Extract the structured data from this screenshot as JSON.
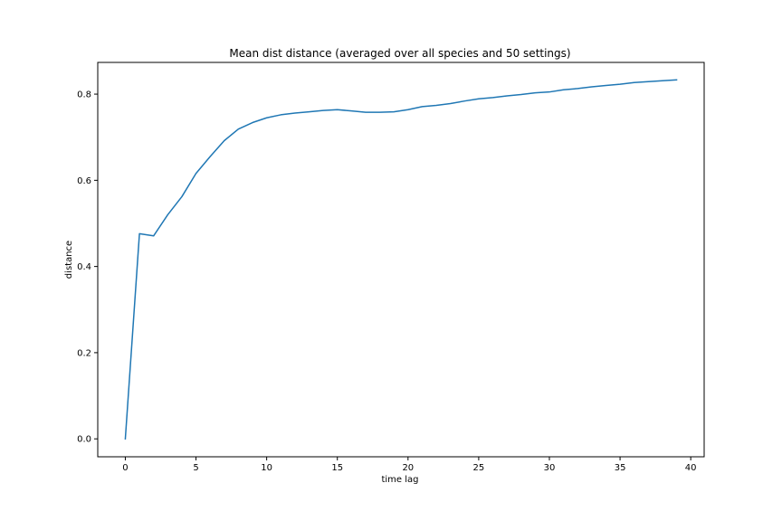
{
  "chart_data": {
    "type": "line",
    "title": "Mean dist distance (averaged over all species and 50 settings)",
    "xlabel": "time lag",
    "ylabel": "distance",
    "xlim": [
      -1.95,
      40.95
    ],
    "ylim": [
      -0.0416,
      0.8736
    ],
    "xticks": [
      0,
      5,
      10,
      15,
      20,
      25,
      30,
      35,
      40
    ],
    "xtick_labels": [
      "0",
      "5",
      "10",
      "15",
      "20",
      "25",
      "30",
      "35",
      "40"
    ],
    "yticks": [
      0.0,
      0.2,
      0.4,
      0.6,
      0.8
    ],
    "ytick_labels": [
      "0.0",
      "0.2",
      "0.4",
      "0.6",
      "0.8"
    ],
    "grid": false,
    "legend": "none",
    "series": [
      {
        "color": "#1f77b4",
        "x": [
          0,
          1,
          2,
          3,
          4,
          5,
          6,
          7,
          8,
          9,
          10,
          11,
          12,
          13,
          14,
          15,
          16,
          17,
          18,
          19,
          20,
          21,
          22,
          23,
          24,
          25,
          26,
          27,
          28,
          29,
          30,
          31,
          32,
          33,
          34,
          35,
          36,
          37,
          38,
          39
        ],
        "y": [
          0.0,
          0.476,
          0.471,
          0.52,
          0.562,
          0.616,
          0.655,
          0.692,
          0.719,
          0.734,
          0.745,
          0.752,
          0.756,
          0.759,
          0.762,
          0.764,
          0.761,
          0.758,
          0.758,
          0.759,
          0.764,
          0.771,
          0.774,
          0.778,
          0.784,
          0.789,
          0.792,
          0.796,
          0.799,
          0.803,
          0.805,
          0.81,
          0.813,
          0.817,
          0.82,
          0.823,
          0.827,
          0.829,
          0.831,
          0.833
        ]
      }
    ]
  }
}
